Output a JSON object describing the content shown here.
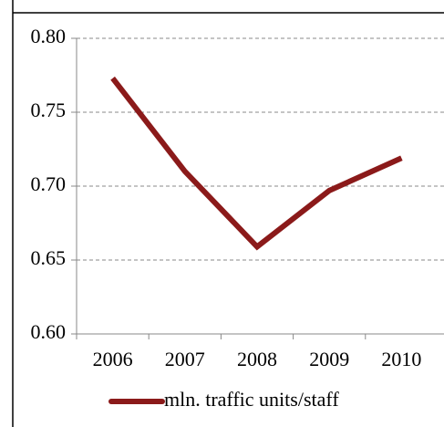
{
  "chart_data": {
    "type": "line",
    "categories": [
      "2006",
      "2007",
      "2008",
      "2009",
      "2010"
    ],
    "series": [
      {
        "name": "mln. traffic units/staff",
        "color": "#8b1a1a",
        "values": [
          0.773,
          0.71,
          0.659,
          0.697,
          0.719
        ]
      }
    ],
    "ylim": [
      0.6,
      0.8
    ],
    "yticks": [
      {
        "value": 0.6,
        "label": "0.60"
      },
      {
        "value": 0.65,
        "label": "0.65"
      },
      {
        "value": 0.7,
        "label": "0.70"
      },
      {
        "value": 0.75,
        "label": "0.75"
      },
      {
        "value": 0.8,
        "label": "0.80"
      }
    ],
    "grid": true,
    "legend": "bottom"
  }
}
